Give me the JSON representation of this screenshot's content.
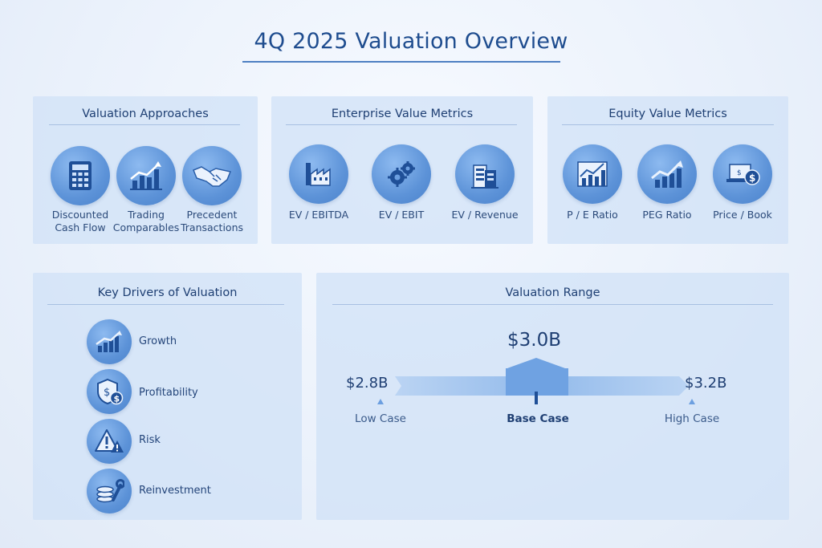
{
  "title": "4Q 2025 Valuation Overview",
  "colors": {
    "accent": "#4a82cc",
    "text": "#1f3f73",
    "card": "#d0e1f7"
  },
  "approaches": {
    "title": "Valuation Approaches",
    "items": [
      {
        "label": "Discounted\nCash Flow",
        "icon": "calculator-icon"
      },
      {
        "label": "Trading\nComparables",
        "icon": "bar-chart-up-icon"
      },
      {
        "label": "Precedent\nTransactions",
        "icon": "handshake-icon"
      }
    ]
  },
  "ev_metrics": {
    "title": "Enterprise Value Metrics",
    "items": [
      {
        "label": "EV / EBITDA",
        "icon": "factory-icon"
      },
      {
        "label": "EV / EBIT",
        "icon": "gears-icon"
      },
      {
        "label": "EV / Revenue",
        "icon": "building-icon"
      }
    ]
  },
  "equity_metrics": {
    "title": "Equity Value Metrics",
    "items": [
      {
        "label": "P / E Ratio",
        "icon": "line-chart-icon"
      },
      {
        "label": "PEG Ratio",
        "icon": "growth-arrow-icon"
      },
      {
        "label": "Price / Book",
        "icon": "laptop-dollar-icon"
      }
    ]
  },
  "drivers": {
    "title": "Key Drivers of Valuation",
    "items": [
      {
        "label": "Growth",
        "icon": "growth-chart-icon"
      },
      {
        "label": "Profitability",
        "icon": "shield-dollar-icon"
      },
      {
        "label": "Risk",
        "icon": "warning-icon"
      },
      {
        "label": "Reinvestment",
        "icon": "coins-wrench-icon"
      }
    ]
  },
  "range": {
    "title": "Valuation Range",
    "low": {
      "value": "$2.8B",
      "label": "Low Case"
    },
    "base": {
      "value": "$3.0B",
      "label": "Base Case"
    },
    "high": {
      "value": "$3.2B",
      "label": "High Case"
    }
  }
}
